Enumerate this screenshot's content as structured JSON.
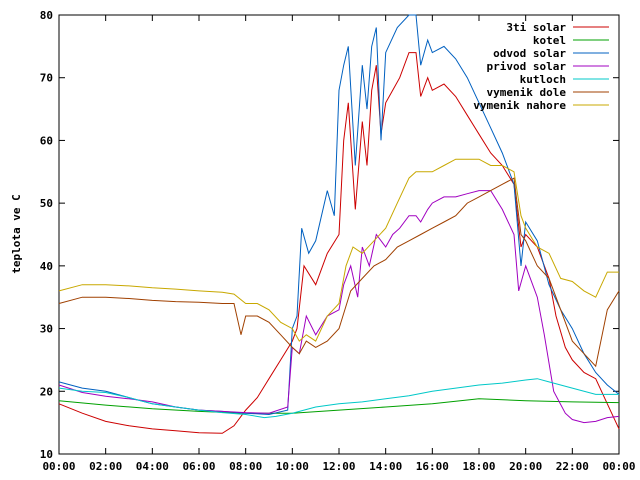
{
  "chart_data": {
    "type": "line",
    "title": "",
    "xlabel": "",
    "ylabel": "teplota ve C",
    "xlim": [
      0,
      24
    ],
    "ylim": [
      10,
      80
    ],
    "grid": false,
    "legend_position": "top-right",
    "x_tick_labels": [
      "00:00",
      "02:00",
      "04:00",
      "06:00",
      "08:00",
      "10:00",
      "12:00",
      "14:00",
      "16:00",
      "18:00",
      "20:00",
      "22:00",
      "00:00"
    ],
    "y_tick_labels": [
      "10",
      "20",
      "30",
      "40",
      "50",
      "60",
      "70",
      "80"
    ],
    "series": [
      {
        "name": "3ti solar",
        "color": "#cc0000",
        "points": [
          [
            0,
            18
          ],
          [
            1,
            16.5
          ],
          [
            2,
            15.2
          ],
          [
            3,
            14.5
          ],
          [
            4,
            14
          ],
          [
            5,
            13.7
          ],
          [
            6,
            13.4
          ],
          [
            7,
            13.3
          ],
          [
            7.5,
            14.5
          ],
          [
            8,
            17
          ],
          [
            8.5,
            19
          ],
          [
            9,
            22
          ],
          [
            9.5,
            25
          ],
          [
            10,
            28
          ],
          [
            10.2,
            30
          ],
          [
            10.5,
            40
          ],
          [
            11,
            37
          ],
          [
            11.5,
            42
          ],
          [
            12,
            45
          ],
          [
            12.2,
            60
          ],
          [
            12.4,
            66
          ],
          [
            12.7,
            49
          ],
          [
            13,
            63
          ],
          [
            13.2,
            56
          ],
          [
            13.4,
            68
          ],
          [
            13.6,
            72
          ],
          [
            13.8,
            61
          ],
          [
            14,
            66
          ],
          [
            14.3,
            68
          ],
          [
            14.6,
            70
          ],
          [
            15,
            74
          ],
          [
            15.3,
            74
          ],
          [
            15.5,
            67
          ],
          [
            15.8,
            70
          ],
          [
            16,
            68
          ],
          [
            16.5,
            69
          ],
          [
            17,
            67
          ],
          [
            17.5,
            64
          ],
          [
            18,
            61
          ],
          [
            18.5,
            58
          ],
          [
            19,
            56
          ],
          [
            19.5,
            53
          ],
          [
            19.8,
            43
          ],
          [
            20,
            45
          ],
          [
            20.5,
            43
          ],
          [
            21,
            38
          ],
          [
            21.3,
            32
          ],
          [
            21.7,
            27
          ],
          [
            22,
            25
          ],
          [
            22.5,
            23
          ],
          [
            23,
            22
          ],
          [
            23.5,
            18
          ],
          [
            24,
            14
          ]
        ]
      },
      {
        "name": "kotel",
        "color": "#00a000",
        "points": [
          [
            0,
            18.5
          ],
          [
            2,
            17.8
          ],
          [
            4,
            17.2
          ],
          [
            6,
            16.8
          ],
          [
            8,
            16.5
          ],
          [
            10,
            16.5
          ],
          [
            12,
            17
          ],
          [
            14,
            17.5
          ],
          [
            16,
            18
          ],
          [
            18,
            18.8
          ],
          [
            20,
            18.5
          ],
          [
            22,
            18.3
          ],
          [
            24,
            18.2
          ]
        ]
      },
      {
        "name": "odvod solar",
        "color": "#0060c0",
        "points": [
          [
            0,
            21.5
          ],
          [
            1,
            20.5
          ],
          [
            2,
            20
          ],
          [
            3,
            19
          ],
          [
            4,
            18
          ],
          [
            5,
            17.5
          ],
          [
            6,
            17
          ],
          [
            7,
            16.8
          ],
          [
            8,
            16.5
          ],
          [
            9,
            16.3
          ],
          [
            9.8,
            17
          ],
          [
            10,
            30
          ],
          [
            10.2,
            32
          ],
          [
            10.4,
            46
          ],
          [
            10.7,
            42
          ],
          [
            11,
            44
          ],
          [
            11.5,
            52
          ],
          [
            11.8,
            48
          ],
          [
            12,
            68
          ],
          [
            12.2,
            72
          ],
          [
            12.4,
            75
          ],
          [
            12.7,
            56
          ],
          [
            13,
            72
          ],
          [
            13.2,
            65
          ],
          [
            13.4,
            75
          ],
          [
            13.6,
            78
          ],
          [
            13.8,
            60
          ],
          [
            14,
            74
          ],
          [
            14.5,
            78
          ],
          [
            15,
            80
          ],
          [
            15.3,
            80
          ],
          [
            15.5,
            72
          ],
          [
            15.8,
            76
          ],
          [
            16,
            74
          ],
          [
            16.5,
            75
          ],
          [
            17,
            73
          ],
          [
            17.5,
            70
          ],
          [
            18,
            66
          ],
          [
            18.5,
            62
          ],
          [
            19,
            58
          ],
          [
            19.5,
            53
          ],
          [
            19.8,
            40
          ],
          [
            20,
            47
          ],
          [
            20.5,
            44
          ],
          [
            21,
            37
          ],
          [
            21.5,
            33
          ],
          [
            22,
            30
          ],
          [
            22.5,
            26
          ],
          [
            23,
            23
          ],
          [
            23.5,
            21
          ],
          [
            24,
            19.5
          ]
        ]
      },
      {
        "name": "privod solar",
        "color": "#a000c0",
        "points": [
          [
            0,
            21
          ],
          [
            1,
            19.8
          ],
          [
            2,
            19.2
          ],
          [
            3,
            18.8
          ],
          [
            4,
            18.3
          ],
          [
            5,
            17.5
          ],
          [
            6,
            17
          ],
          [
            7,
            16.8
          ],
          [
            8,
            16.6
          ],
          [
            9,
            16.5
          ],
          [
            9.8,
            17.5
          ],
          [
            10,
            27
          ],
          [
            10.3,
            26
          ],
          [
            10.6,
            32
          ],
          [
            11,
            29
          ],
          [
            11.5,
            32
          ],
          [
            12,
            33
          ],
          [
            12.2,
            37
          ],
          [
            12.5,
            40
          ],
          [
            12.8,
            35
          ],
          [
            13,
            43
          ],
          [
            13.3,
            40
          ],
          [
            13.6,
            45
          ],
          [
            14,
            43
          ],
          [
            14.3,
            45
          ],
          [
            14.6,
            46
          ],
          [
            15,
            48
          ],
          [
            15.3,
            48
          ],
          [
            15.5,
            47
          ],
          [
            15.8,
            49
          ],
          [
            16,
            50
          ],
          [
            16.5,
            51
          ],
          [
            17,
            51
          ],
          [
            17.5,
            51.5
          ],
          [
            18,
            52
          ],
          [
            18.5,
            52
          ],
          [
            19,
            49
          ],
          [
            19.5,
            45
          ],
          [
            19.7,
            36
          ],
          [
            20,
            40
          ],
          [
            20.5,
            35
          ],
          [
            20.8,
            29
          ],
          [
            21.2,
            20
          ],
          [
            21.7,
            16.5
          ],
          [
            22,
            15.5
          ],
          [
            22.5,
            15
          ],
          [
            23,
            15.2
          ],
          [
            23.5,
            15.8
          ],
          [
            24,
            16
          ]
        ]
      },
      {
        "name": "kutloch",
        "color": "#00c8c8",
        "points": [
          [
            0,
            20.5
          ],
          [
            1,
            20
          ],
          [
            2,
            19.8
          ],
          [
            3,
            19
          ],
          [
            4,
            18
          ],
          [
            5,
            17.5
          ],
          [
            6,
            17
          ],
          [
            7,
            16.6
          ],
          [
            8,
            16.3
          ],
          [
            8.8,
            15.8
          ],
          [
            9.3,
            16
          ],
          [
            10,
            16.5
          ],
          [
            10.5,
            17
          ],
          [
            11,
            17.5
          ],
          [
            12,
            18
          ],
          [
            13,
            18.3
          ],
          [
            14,
            18.8
          ],
          [
            15,
            19.3
          ],
          [
            16,
            20
          ],
          [
            17,
            20.5
          ],
          [
            18,
            21
          ],
          [
            19,
            21.3
          ],
          [
            20,
            21.8
          ],
          [
            20.5,
            22
          ],
          [
            21,
            21.5
          ],
          [
            22,
            20.5
          ],
          [
            23,
            19.5
          ],
          [
            24,
            19.5
          ]
        ]
      },
      {
        "name": "vymenik dole",
        "color": "#a04000",
        "points": [
          [
            0,
            34
          ],
          [
            1,
            35
          ],
          [
            2,
            35
          ],
          [
            3,
            34.8
          ],
          [
            4,
            34.5
          ],
          [
            5,
            34.3
          ],
          [
            6,
            34.2
          ],
          [
            7,
            34
          ],
          [
            7.5,
            34
          ],
          [
            7.8,
            29
          ],
          [
            8,
            32
          ],
          [
            8.5,
            32
          ],
          [
            9,
            31
          ],
          [
            9.5,
            29
          ],
          [
            10,
            27
          ],
          [
            10.3,
            26
          ],
          [
            10.6,
            28
          ],
          [
            11,
            27
          ],
          [
            11.5,
            28
          ],
          [
            12,
            30
          ],
          [
            12.5,
            36
          ],
          [
            13,
            38
          ],
          [
            13.5,
            40
          ],
          [
            14,
            41
          ],
          [
            14.5,
            43
          ],
          [
            15,
            44
          ],
          [
            15.5,
            45
          ],
          [
            16,
            46
          ],
          [
            16.5,
            47
          ],
          [
            17,
            48
          ],
          [
            17.5,
            50
          ],
          [
            18,
            51
          ],
          [
            18.5,
            52
          ],
          [
            19,
            53
          ],
          [
            19.5,
            54
          ],
          [
            19.8,
            45
          ],
          [
            20,
            44
          ],
          [
            20.5,
            40
          ],
          [
            21,
            38
          ],
          [
            21.5,
            33
          ],
          [
            22,
            28
          ],
          [
            22.5,
            26
          ],
          [
            23,
            24
          ],
          [
            23.5,
            33
          ],
          [
            24,
            36
          ]
        ]
      },
      {
        "name": "vymenik nahore",
        "color": "#c8a800",
        "points": [
          [
            0,
            36
          ],
          [
            1,
            37
          ],
          [
            2,
            37
          ],
          [
            3,
            36.8
          ],
          [
            4,
            36.5
          ],
          [
            5,
            36.3
          ],
          [
            6,
            36
          ],
          [
            7,
            35.8
          ],
          [
            7.5,
            35.5
          ],
          [
            8,
            34
          ],
          [
            8.5,
            34
          ],
          [
            9,
            33
          ],
          [
            9.5,
            31
          ],
          [
            10,
            30
          ],
          [
            10.3,
            28
          ],
          [
            10.6,
            29
          ],
          [
            11,
            28
          ],
          [
            11.5,
            32
          ],
          [
            12,
            34
          ],
          [
            12.3,
            40
          ],
          [
            12.6,
            43
          ],
          [
            13,
            42
          ],
          [
            13.5,
            44
          ],
          [
            14,
            46
          ],
          [
            14.5,
            50
          ],
          [
            15,
            54
          ],
          [
            15.3,
            55
          ],
          [
            15.6,
            55
          ],
          [
            16,
            55
          ],
          [
            16.5,
            56
          ],
          [
            17,
            57
          ],
          [
            17.5,
            57
          ],
          [
            18,
            57
          ],
          [
            18.5,
            56
          ],
          [
            19,
            56
          ],
          [
            19.5,
            55
          ],
          [
            19.8,
            48
          ],
          [
            20,
            46
          ],
          [
            20.5,
            43
          ],
          [
            21,
            42
          ],
          [
            21.5,
            38
          ],
          [
            22,
            37.5
          ],
          [
            22.5,
            36
          ],
          [
            23,
            35
          ],
          [
            23.5,
            39
          ],
          [
            24,
            39
          ]
        ]
      }
    ]
  }
}
